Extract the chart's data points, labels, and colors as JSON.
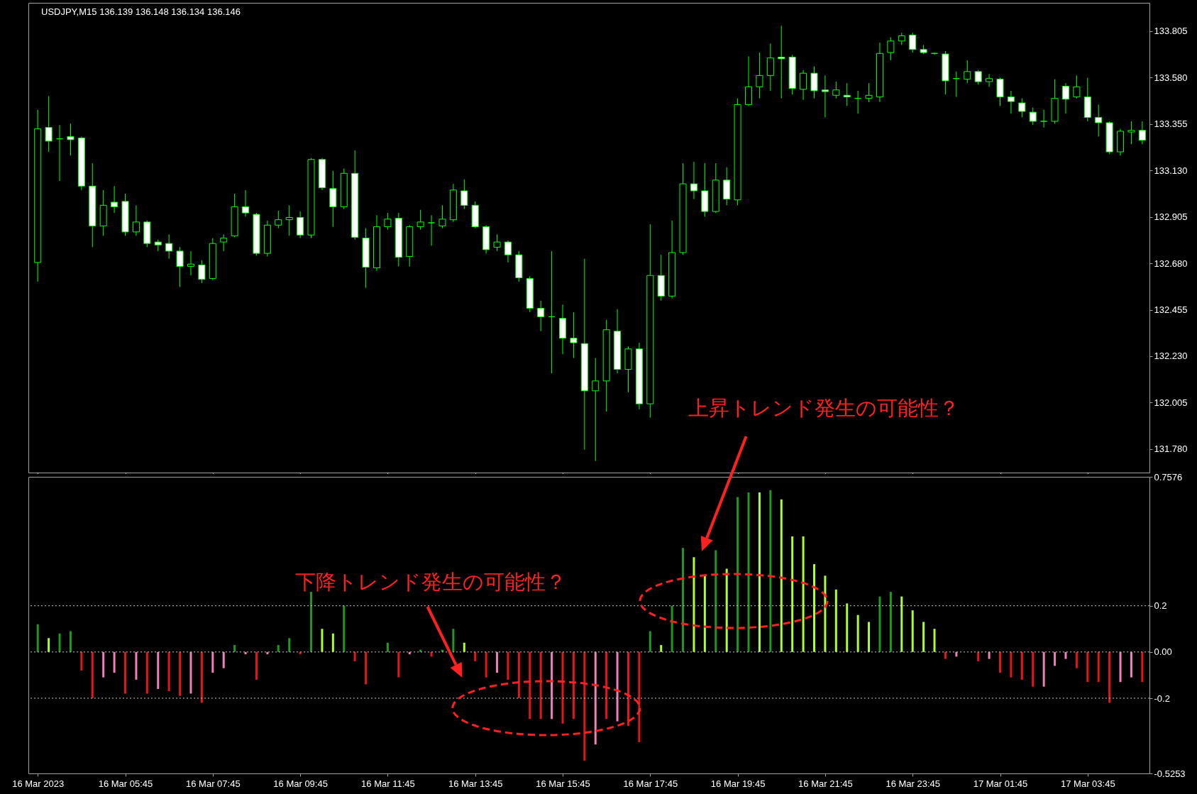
{
  "chart_data": [
    {
      "type": "candlestick",
      "title": "USDJPY,M15  136.139 136.148 136.134 136.146",
      "x": [
        "2023-03-16T03:45",
        "2023-03-16T04:00",
        "2023-03-16T04:15",
        "2023-03-16T04:30",
        "2023-03-16T04:45",
        "2023-03-16T05:00",
        "2023-03-16T05:15",
        "2023-03-16T05:30",
        "2023-03-16T05:45",
        "2023-03-16T06:00",
        "2023-03-16T06:15",
        "2023-03-16T06:30",
        "2023-03-16T06:45",
        "2023-03-16T07:00",
        "2023-03-16T07:15",
        "2023-03-16T07:30",
        "2023-03-16T07:45",
        "2023-03-16T08:00",
        "2023-03-16T08:15",
        "2023-03-16T08:30",
        "2023-03-16T08:45",
        "2023-03-16T09:00",
        "2023-03-16T09:15",
        "2023-03-16T09:30",
        "2023-03-16T09:45",
        "2023-03-16T10:00",
        "2023-03-16T10:15",
        "2023-03-16T10:30",
        "2023-03-16T10:45",
        "2023-03-16T11:00",
        "2023-03-16T11:15",
        "2023-03-16T11:30",
        "2023-03-16T11:45",
        "2023-03-16T12:00",
        "2023-03-16T12:15",
        "2023-03-16T12:30",
        "2023-03-16T12:45",
        "2023-03-16T13:00",
        "2023-03-16T13:15",
        "2023-03-16T13:30",
        "2023-03-16T13:45",
        "2023-03-16T14:00",
        "2023-03-16T14:15",
        "2023-03-16T14:30",
        "2023-03-16T14:45",
        "2023-03-16T15:00",
        "2023-03-16T15:15",
        "2023-03-16T15:30",
        "2023-03-16T15:45",
        "2023-03-16T16:00",
        "2023-03-16T16:15",
        "2023-03-16T16:30",
        "2023-03-16T16:45",
        "2023-03-16T17:00",
        "2023-03-16T17:15",
        "2023-03-16T17:30",
        "2023-03-16T17:45",
        "2023-03-16T18:00",
        "2023-03-16T18:15",
        "2023-03-16T18:30",
        "2023-03-16T18:45",
        "2023-03-16T19:00",
        "2023-03-16T19:15",
        "2023-03-16T19:30",
        "2023-03-16T19:45",
        "2023-03-16T20:00",
        "2023-03-16T20:15",
        "2023-03-16T20:30",
        "2023-03-16T20:45",
        "2023-03-16T21:00",
        "2023-03-16T21:15",
        "2023-03-16T21:30",
        "2023-03-16T21:45",
        "2023-03-16T22:00",
        "2023-03-16T22:15",
        "2023-03-16T22:30",
        "2023-03-16T22:45",
        "2023-03-16T23:00",
        "2023-03-16T23:15",
        "2023-03-16T23:30",
        "2023-03-16T23:45",
        "2023-03-17T00:00",
        "2023-03-17T00:15",
        "2023-03-17T00:30",
        "2023-03-17T00:45",
        "2023-03-17T01:00",
        "2023-03-17T01:15",
        "2023-03-17T01:30",
        "2023-03-17T01:45",
        "2023-03-17T02:00",
        "2023-03-17T02:15",
        "2023-03-17T02:30",
        "2023-03-17T02:45",
        "2023-03-17T03:00",
        "2023-03-17T03:15",
        "2023-03-17T03:30",
        "2023-03-17T03:45",
        "2023-03-17T04:00",
        "2023-03-17T04:15",
        "2023-03-17T04:30",
        "2023-03-17T04:45",
        "2023-03-17T05:00"
      ],
      "ohlc": [
        [
          132.684,
          133.424,
          132.591,
          133.331
        ],
        [
          133.338,
          133.49,
          133.22,
          133.272
        ],
        [
          133.283,
          133.35,
          133.079,
          133.283
        ],
        [
          133.294,
          133.357,
          133.202,
          133.279
        ],
        [
          133.287,
          133.294,
          133.035,
          133.054
        ],
        [
          133.054,
          133.165,
          132.758,
          132.861
        ],
        [
          132.861,
          133.035,
          132.813,
          132.961
        ],
        [
          132.976,
          133.054,
          132.924,
          132.954
        ],
        [
          132.98,
          133.017,
          132.813,
          132.832
        ],
        [
          132.832,
          132.961,
          132.813,
          132.88
        ],
        [
          132.88,
          132.887,
          132.758,
          132.776
        ],
        [
          132.783,
          132.795,
          132.739,
          132.769
        ],
        [
          132.776,
          132.82,
          132.702,
          132.739
        ],
        [
          132.739,
          132.758,
          132.565,
          132.665
        ],
        [
          132.665,
          132.739,
          132.621,
          132.676
        ],
        [
          132.672,
          132.695,
          132.584,
          132.602
        ],
        [
          132.606,
          132.802,
          132.598,
          132.776
        ],
        [
          132.783,
          132.82,
          132.739,
          132.802
        ],
        [
          132.813,
          133.017,
          132.806,
          132.954
        ],
        [
          132.954,
          133.035,
          132.906,
          132.924
        ],
        [
          132.917,
          132.924,
          132.717,
          132.728
        ],
        [
          132.728,
          132.887,
          132.713,
          132.865
        ],
        [
          132.865,
          132.935,
          132.85,
          132.891
        ],
        [
          132.891,
          132.961,
          132.813,
          132.902
        ],
        [
          132.902,
          132.931,
          132.802,
          132.817
        ],
        [
          132.817,
          133.19,
          132.802,
          133.183
        ],
        [
          133.183,
          133.19,
          133.035,
          133.046
        ],
        [
          133.042,
          133.128,
          132.857,
          132.954
        ],
        [
          132.954,
          133.139,
          132.943,
          133.116
        ],
        [
          133.116,
          133.227,
          132.795,
          132.806
        ],
        [
          132.802,
          132.85,
          132.561,
          132.661
        ],
        [
          132.658,
          132.913,
          132.643,
          132.857
        ],
        [
          132.857,
          132.924,
          132.843,
          132.894
        ],
        [
          132.898,
          132.924,
          132.665,
          132.709
        ],
        [
          132.713,
          132.865,
          132.665,
          132.857
        ],
        [
          132.857,
          132.939,
          132.843,
          132.88
        ],
        [
          132.876,
          132.913,
          132.765,
          132.876
        ],
        [
          132.861,
          132.961,
          132.85,
          132.894
        ],
        [
          132.891,
          133.065,
          132.88,
          133.035
        ],
        [
          133.031,
          133.087,
          132.943,
          132.961
        ],
        [
          132.961,
          132.98,
          132.85,
          132.857
        ],
        [
          132.857,
          132.865,
          132.728,
          132.746
        ],
        [
          132.758,
          132.82,
          132.739,
          132.783
        ],
        [
          132.783,
          132.791,
          132.684,
          132.721
        ],
        [
          132.721,
          132.739,
          132.591,
          132.61
        ],
        [
          132.606,
          132.617,
          132.443,
          132.462
        ],
        [
          132.462,
          132.499,
          132.351,
          132.421
        ],
        [
          132.421,
          132.739,
          132.147,
          132.421
        ],
        [
          132.413,
          132.48,
          132.24,
          132.317
        ],
        [
          132.317,
          132.443,
          132.221,
          132.295
        ],
        [
          132.291,
          132.702,
          131.777,
          132.062
        ],
        [
          132.062,
          132.221,
          131.722,
          132.11
        ],
        [
          132.11,
          132.406,
          131.962,
          132.358
        ],
        [
          132.351,
          132.458,
          132.147,
          132.166
        ],
        [
          132.166,
          132.277,
          132.055,
          132.265
        ],
        [
          132.265,
          132.295,
          131.973,
          131.999
        ],
        [
          131.999,
          132.869,
          131.932,
          132.621
        ],
        [
          132.621,
          132.721,
          132.499,
          132.521
        ],
        [
          132.521,
          132.887,
          132.51,
          132.732
        ],
        [
          132.732,
          133.165,
          132.721,
          133.065
        ],
        [
          133.065,
          133.172,
          132.991,
          133.031
        ],
        [
          133.031,
          133.165,
          132.906,
          132.931
        ],
        [
          132.931,
          133.165,
          132.924,
          133.083
        ],
        [
          133.083,
          133.146,
          132.961,
          132.991
        ],
        [
          132.987,
          133.479,
          132.961,
          133.449
        ],
        [
          133.449,
          133.683,
          133.442,
          133.535
        ],
        [
          133.535,
          133.701,
          133.479,
          133.59
        ],
        [
          133.59,
          133.745,
          133.516,
          133.675
        ],
        [
          133.679,
          133.831,
          133.479,
          133.671
        ],
        [
          133.679,
          133.69,
          133.498,
          133.527
        ],
        [
          133.523,
          133.616,
          133.472,
          133.601
        ],
        [
          133.601,
          133.634,
          133.479,
          133.516
        ],
        [
          133.52,
          133.59,
          133.387,
          133.512
        ],
        [
          133.494,
          133.56,
          133.479,
          133.52
        ],
        [
          133.494,
          133.553,
          133.442,
          133.486
        ],
        [
          133.479,
          133.516,
          133.405,
          133.479
        ],
        [
          133.479,
          133.553,
          133.461,
          133.494
        ],
        [
          133.486,
          133.749,
          133.461,
          133.697
        ],
        [
          133.701,
          133.775,
          133.664,
          133.757
        ],
        [
          133.757,
          133.797,
          133.738,
          133.782
        ],
        [
          133.786,
          133.797,
          133.701,
          133.716
        ],
        [
          133.716,
          133.738,
          133.694,
          133.701
        ],
        [
          133.697,
          133.701,
          133.69,
          133.697
        ],
        [
          133.694,
          133.708,
          133.498,
          133.564
        ],
        [
          133.575,
          133.609,
          133.486,
          133.575
        ],
        [
          133.572,
          133.664,
          133.553,
          133.609
        ],
        [
          133.609,
          133.616,
          133.546,
          133.56
        ],
        [
          133.56,
          133.597,
          133.535,
          133.575
        ],
        [
          133.572,
          133.579,
          133.442,
          133.486
        ],
        [
          133.486,
          133.516,
          133.405,
          133.464
        ],
        [
          133.457,
          133.479,
          133.387,
          133.416
        ],
        [
          133.412,
          133.435,
          133.35,
          133.368
        ],
        [
          133.368,
          133.424,
          133.338,
          133.368
        ],
        [
          133.368,
          133.572,
          133.357,
          133.479
        ],
        [
          133.538,
          133.553,
          133.405,
          133.475
        ],
        [
          133.486,
          133.59,
          133.479,
          133.535
        ],
        [
          133.486,
          133.579,
          133.368,
          133.387
        ],
        [
          133.387,
          133.449,
          133.294,
          133.361
        ],
        [
          133.361,
          133.368,
          133.209,
          133.22
        ],
        [
          133.22,
          133.331,
          133.202,
          133.32
        ],
        [
          133.316,
          133.368,
          133.257,
          133.324
        ],
        [
          133.324,
          133.368,
          133.257,
          133.276
        ]
      ],
      "xlim": [
        "2023-03-16T03:37",
        "2023-03-17T05:05"
      ],
      "xticks": [
        {
          "value": "2023-03-16T03:45",
          "label": null
        },
        {
          "value": "2023-03-16T05:45",
          "label": null
        },
        {
          "value": "2023-03-16T07:45",
          "label": null
        },
        {
          "value": "2023-03-16T09:45",
          "label": null
        },
        {
          "value": "2023-03-16T11:45",
          "label": null
        },
        {
          "value": "2023-03-16T13:45",
          "label": null
        },
        {
          "value": "2023-03-16T15:45",
          "label": null
        },
        {
          "value": "2023-03-16T17:45",
          "label": null
        },
        {
          "value": "2023-03-16T19:45",
          "label": null
        },
        {
          "value": "2023-03-16T21:45",
          "label": null
        },
        {
          "value": "2023-03-16T23:45",
          "label": null
        },
        {
          "value": "2023-03-17T01:45",
          "label": null
        },
        {
          "value": "2023-03-17T03:45",
          "label": null
        }
      ],
      "ylim": [
        131.666,
        133.942
      ],
      "yticks": [
        {
          "value": 131.78,
          "label": "131.780"
        },
        132.005,
        {
          "value": 132.23,
          "label": "132.230"
        },
        132.455,
        {
          "value": 132.68,
          "label": "132.680"
        },
        132.905,
        {
          "value": 133.13,
          "label": "133.130"
        },
        133.355,
        {
          "value": 133.58,
          "label": "133.580"
        },
        133.805
      ],
      "tick_labels": "y"
    },
    {
      "type": "bar",
      "x": [
        "2023-03-16T03:45",
        "2023-03-16T04:00",
        "2023-03-16T04:15",
        "2023-03-16T04:30",
        "2023-03-16T04:45",
        "2023-03-16T05:00",
        "2023-03-16T05:15",
        "2023-03-16T05:30",
        "2023-03-16T05:45",
        "2023-03-16T06:00",
        "2023-03-16T06:15",
        "2023-03-16T06:30",
        "2023-03-16T06:45",
        "2023-03-16T07:00",
        "2023-03-16T07:15",
        "2023-03-16T07:30",
        "2023-03-16T07:45",
        "2023-03-16T08:00",
        "2023-03-16T08:15",
        "2023-03-16T08:30",
        "2023-03-16T08:45",
        "2023-03-16T09:00",
        "2023-03-16T09:15",
        "2023-03-16T09:30",
        "2023-03-16T09:45",
        "2023-03-16T10:00",
        "2023-03-16T10:15",
        "2023-03-16T10:30",
        "2023-03-16T10:45",
        "2023-03-16T11:00",
        "2023-03-16T11:15",
        "2023-03-16T11:30",
        "2023-03-16T11:45",
        "2023-03-16T12:00",
        "2023-03-16T12:15",
        "2023-03-16T12:30",
        "2023-03-16T12:45",
        "2023-03-16T13:00",
        "2023-03-16T13:15",
        "2023-03-16T13:30",
        "2023-03-16T13:45",
        "2023-03-16T14:00",
        "2023-03-16T14:15",
        "2023-03-16T14:30",
        "2023-03-16T14:45",
        "2023-03-16T15:00",
        "2023-03-16T15:15",
        "2023-03-16T15:30",
        "2023-03-16T15:45",
        "2023-03-16T16:00",
        "2023-03-16T16:15",
        "2023-03-16T16:30",
        "2023-03-16T16:45",
        "2023-03-16T17:00",
        "2023-03-16T17:15",
        "2023-03-16T17:30",
        "2023-03-16T17:45",
        "2023-03-16T18:00",
        "2023-03-16T18:15",
        "2023-03-16T18:30",
        "2023-03-16T18:45",
        "2023-03-16T19:00",
        "2023-03-16T19:15",
        "2023-03-16T19:30",
        "2023-03-16T19:45",
        "2023-03-16T20:00",
        "2023-03-16T20:15",
        "2023-03-16T20:30",
        "2023-03-16T20:45",
        "2023-03-16T21:00",
        "2023-03-16T21:15",
        "2023-03-16T21:30",
        "2023-03-16T21:45",
        "2023-03-16T22:00",
        "2023-03-16T22:15",
        "2023-03-16T22:30",
        "2023-03-16T22:45",
        "2023-03-16T23:00",
        "2023-03-16T23:15",
        "2023-03-16T23:30",
        "2023-03-16T23:45",
        "2023-03-17T00:00",
        "2023-03-17T00:15",
        "2023-03-17T00:30",
        "2023-03-17T00:45",
        "2023-03-17T01:00",
        "2023-03-17T01:15",
        "2023-03-17T01:30",
        "2023-03-17T01:45",
        "2023-03-17T02:00",
        "2023-03-17T02:15",
        "2023-03-17T02:30",
        "2023-03-17T02:45",
        "2023-03-17T03:00",
        "2023-03-17T03:15",
        "2023-03-17T03:30",
        "2023-03-17T03:45",
        "2023-03-17T04:00",
        "2023-03-17T04:15",
        "2023-03-17T04:30",
        "2023-03-17T04:45",
        "2023-03-17T05:00"
      ],
      "values": [
        0.12,
        0.06,
        0.08,
        0.09,
        -0.08,
        -0.2,
        -0.11,
        -0.09,
        -0.18,
        -0.12,
        -0.18,
        -0.16,
        -0.17,
        -0.19,
        -0.18,
        -0.22,
        -0.09,
        -0.07,
        0.03,
        -0.01,
        -0.12,
        -0.01,
        0.03,
        0.06,
        -0.01,
        0.26,
        0.1,
        0.08,
        0.2,
        -0.04,
        -0.14,
        null,
        0.04,
        -0.11,
        -0.01,
        0.01,
        -0.02,
        0.01,
        0.1,
        0.04,
        -0.04,
        -0.11,
        -0.09,
        -0.12,
        -0.2,
        -0.29,
        -0.29,
        -0.29,
        -0.31,
        -0.29,
        -0.47,
        -0.4,
        -0.29,
        -0.3,
        -0.32,
        -0.39,
        0.09,
        0.03,
        0.2,
        0.45,
        0.41,
        0.33,
        0.44,
        0.36,
        0.67,
        0.69,
        0.69,
        0.7,
        0.66,
        0.5,
        0.5,
        0.38,
        0.33,
        0.27,
        0.21,
        0.16,
        0.13,
        0.24,
        0.26,
        0.24,
        0.18,
        0.13,
        0.1,
        -0.03,
        -0.02,
        null,
        -0.04,
        -0.03,
        -0.09,
        -0.11,
        -0.12,
        -0.15,
        -0.15,
        -0.06,
        -0.03,
        -0.07,
        -0.13,
        -0.13,
        -0.22,
        -0.13,
        -0.11,
        -0.13
      ],
      "colors": [
        "#1e9a1e",
        "#adff2f",
        "#1e9a1e",
        "#1e9a1e",
        "#e8141c",
        "#e8141c",
        "#f080b8",
        "#f080b8",
        "#e8141c",
        "#f080b8",
        "#e8141c",
        "#f080b8",
        "#e8141c",
        "#e8141c",
        "#f080b8",
        "#e8141c",
        "#f080b8",
        "#f080b8",
        "#1e9a1e",
        "#f080b8",
        "#e8141c",
        "#f080b8",
        "#1e9a1e",
        "#1e9a1e",
        "#e8141c",
        "#1e9a1e",
        "#adff2f",
        "#adff2f",
        "#1e9a1e",
        "#e8141c",
        "#e8141c",
        "#1e9a1e",
        "#1e9a1e",
        "#e8141c",
        "#f080b8",
        "#1e9a1e",
        "#e8141c",
        "#1e9a1e",
        "#1e9a1e",
        "#adff2f",
        "#e8141c",
        "#e8141c",
        "#f080b8",
        "#e8141c",
        "#e8141c",
        "#e8141c",
        "#e8141c",
        "#f080b8",
        "#e8141c",
        "#e8141c",
        "#e8141c",
        "#f080b8",
        "#e8141c",
        "#f080b8",
        "#e8141c",
        "#e8141c",
        "#1e9a1e",
        "#adff2f",
        "#1e9a1e",
        "#1e9a1e",
        "#adff2f",
        "#adff2f",
        "#1e9a1e",
        "#adff2f",
        "#1e9a1e",
        "#1e9a1e",
        "#adff2f",
        "#1e9a1e",
        "#adff2f",
        "#adff2f",
        "#adff2f",
        "#adff2f",
        "#adff2f",
        "#adff2f",
        "#adff2f",
        "#adff2f",
        "#adff2f",
        "#1e9a1e",
        "#1e9a1e",
        "#adff2f",
        "#adff2f",
        "#adff2f",
        "#adff2f",
        "#e8141c",
        "#f080b8",
        "#e8141c",
        "#e8141c",
        "#f080b8",
        "#e8141c",
        "#e8141c",
        "#e8141c",
        "#e8141c",
        "#f080b8",
        "#f080b8",
        "#f080b8",
        "#e8141c",
        "#e8141c",
        "#e8141c",
        "#e8141c",
        "#f080b8",
        "#f080b8",
        "#e8141c"
      ],
      "xlim": [
        "2023-03-16T03:37",
        "2023-03-17T05:05"
      ],
      "xticks": [
        {
          "value": "2023-03-16T03:45",
          "label": "16 Mar 2023"
        },
        {
          "value": "2023-03-16T05:45",
          "label": "16 Mar 05:45"
        },
        {
          "value": "2023-03-16T07:45",
          "label": "16 Mar 07:45"
        },
        {
          "value": "2023-03-16T09:45",
          "label": "16 Mar 09:45"
        },
        {
          "value": "2023-03-16T11:45",
          "label": "16 Mar 11:45"
        },
        {
          "value": "2023-03-16T13:45",
          "label": "16 Mar 13:45"
        },
        {
          "value": "2023-03-16T15:45",
          "label": "16 Mar 15:45"
        },
        {
          "value": "2023-03-16T17:45",
          "label": "16 Mar 17:45"
        },
        {
          "value": "2023-03-16T19:45",
          "label": "16 Mar 19:45"
        },
        {
          "value": "2023-03-16T21:45",
          "label": "16 Mar 21:45"
        },
        {
          "value": "2023-03-16T23:45",
          "label": "16 Mar 23:45"
        },
        {
          "value": "2023-03-17T01:45",
          "label": "17 Mar 01:45"
        },
        {
          "value": "2023-03-17T03:45",
          "label": "17 Mar 03:45"
        }
      ],
      "ylim": [
        -0.5253,
        0.7576
      ],
      "yticks": [
        -0.5253,
        -0.2,
        {
          "value": 0,
          "label": "0.00"
        },
        0.2,
        0.7576
      ],
      "ref_lines": [
        {
          "axis": "y",
          "value": 0.2,
          "line_style": "dotted",
          "color": "#c8c8c8"
        },
        {
          "axis": "y",
          "value": 0,
          "line_style": "dotted",
          "color": "#c8c8c8"
        },
        {
          "axis": "y",
          "value": -0.2,
          "line_style": "dotted",
          "color": "#c8c8c8"
        }
      ],
      "annotations": [
        "上昇トレンド発生の可能性？",
        "下降トレンド発生の可能性？"
      ]
    }
  ]
}
